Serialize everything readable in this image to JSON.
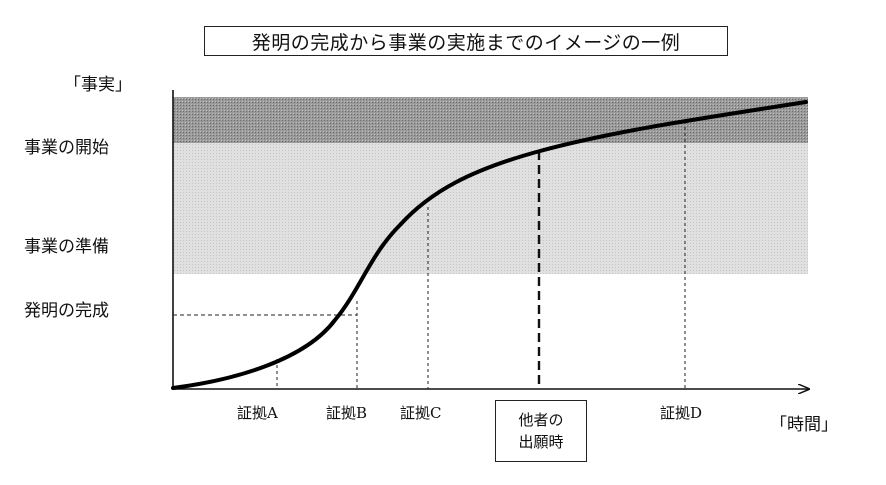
{
  "title": "発明の完成から事業の実施までのイメージの一例",
  "y_axis_label": "「事実」",
  "x_axis_label": "「時間」",
  "stages": {
    "business_start": "事業の開始",
    "business_prep": "事業の準備",
    "invention_complete": "発明の完成"
  },
  "evidence": {
    "a": "証拠A",
    "b": "証拠B",
    "c": "証拠C",
    "d": "証拠D"
  },
  "other_party": {
    "line1": "他者の",
    "line2": "出願時"
  },
  "colors": {
    "band_dark": "#8c8c8c",
    "band_light": "#dcdcdc",
    "curve": "#000000"
  }
}
